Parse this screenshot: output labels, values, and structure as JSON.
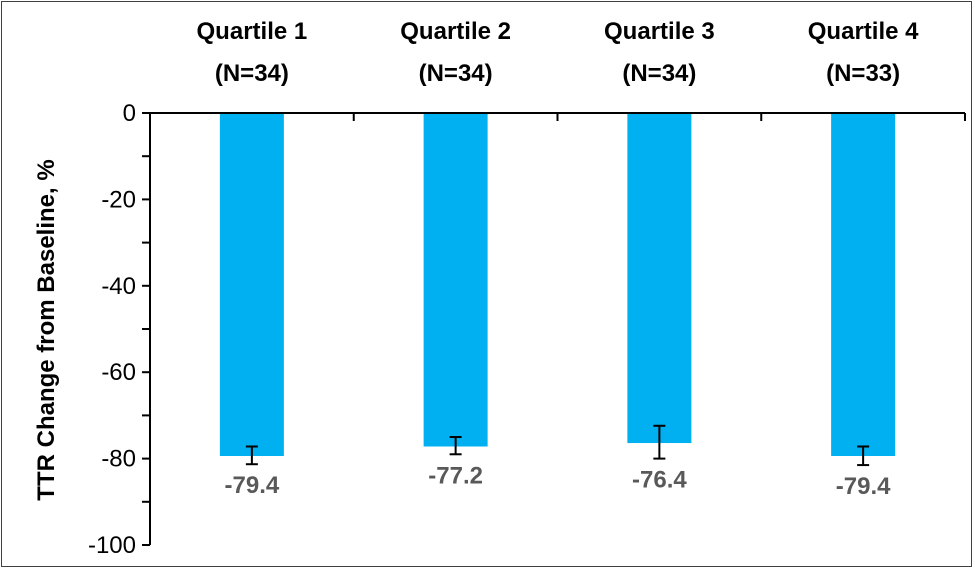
{
  "chart_data": {
    "type": "bar",
    "categories": [
      "Quartile 1",
      "Quartile 2",
      "Quartile 3",
      "Quartile 4"
    ],
    "category_counts": [
      "(N=34)",
      "(N=34)",
      "(N=34)",
      "(N=33)"
    ],
    "values": [
      -79.4,
      -77.2,
      -76.4,
      -79.4
    ],
    "error_bars": [
      {
        "low": -81.3,
        "high": -77.2
      },
      {
        "low": -79.0,
        "high": -75.0
      },
      {
        "low": -80.0,
        "high": -72.4
      },
      {
        "low": -81.5,
        "high": -77.2
      }
    ],
    "data_labels": [
      "-79.4",
      "-77.2",
      "-76.4",
      "-79.4"
    ],
    "title": "",
    "xlabel": "",
    "ylabel": "TTR Change from Baseline, %",
    "ylim": [
      -100,
      0
    ],
    "yticks": [
      0,
      -20,
      -40,
      -60,
      -80,
      -100
    ],
    "x_axis_position": "top",
    "grid": false,
    "legend": "none",
    "colors": {
      "bar": "#00B0F0",
      "error_bar": "#000000",
      "data_label": "#595959",
      "axis": "#000000"
    }
  }
}
